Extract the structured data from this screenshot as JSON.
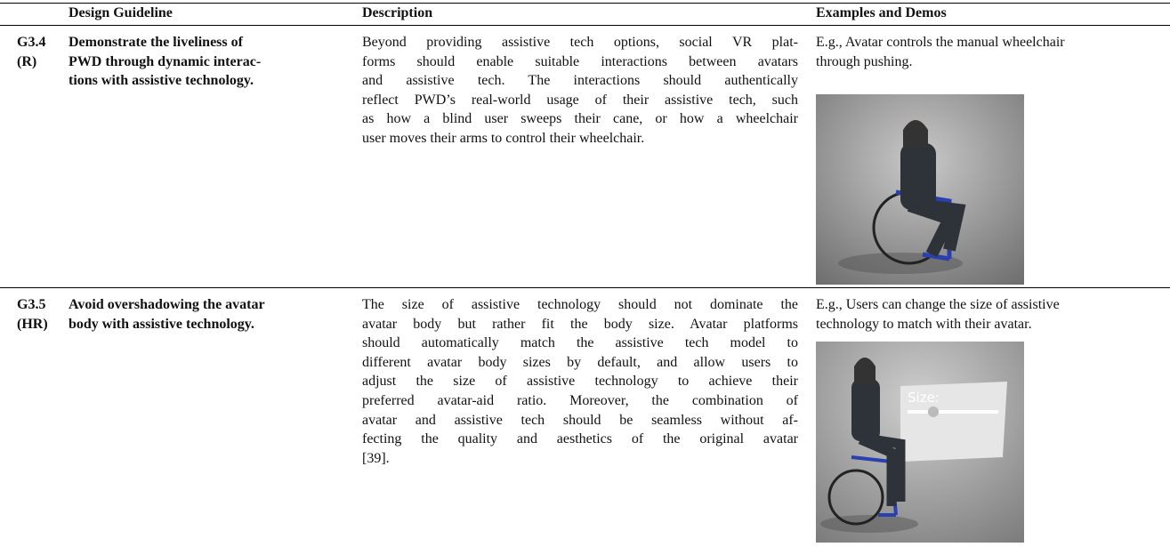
{
  "table": {
    "header": [
      "Design Guideline",
      "Description",
      "Examples and Demos"
    ],
    "rows": [
      {
        "id": "G3.4",
        "tag": "(R)",
        "guideline": [
          "Demonstrate the liveliness of",
          "PWD through dynamic interac-",
          "tions with assistive technology."
        ],
        "description": [
          "Beyond providing assistive tech options, social VR plat-",
          "forms should enable suitable interactions between avatars",
          "and assistive tech. The interactions should authentically",
          "reflect PWD’s real-world usage of their assistive tech, such",
          "as how a blind user sweeps their cane, or how a wheelchair",
          "user moves their arms to control their wheelchair."
        ],
        "example": [
          "E.g., Avatar controls the manual wheelchair",
          "through pushing."
        ]
      },
      {
        "id": "G3.5",
        "tag": "(HR)",
        "guideline": [
          "Avoid overshadowing the avatar",
          "body with assistive technology."
        ],
        "description": [
          "The size of assistive technology should not dominate the",
          "avatar body but rather fit the body size. Avatar platforms",
          "should automatically match the assistive tech model to",
          "different avatar body sizes by default, and allow users to",
          "adjust the size of assistive technology to achieve their",
          "preferred avatar-aid ratio. Moreover, the combination of",
          "avatar and assistive tech should be seamless without af-",
          "fecting the quality and aesthetics of the original avatar",
          "[39]."
        ],
        "example": [
          "E.g., Users can change the size of assistive",
          "technology to match with their avatar."
        ],
        "image_label": "Size:"
      }
    ]
  }
}
